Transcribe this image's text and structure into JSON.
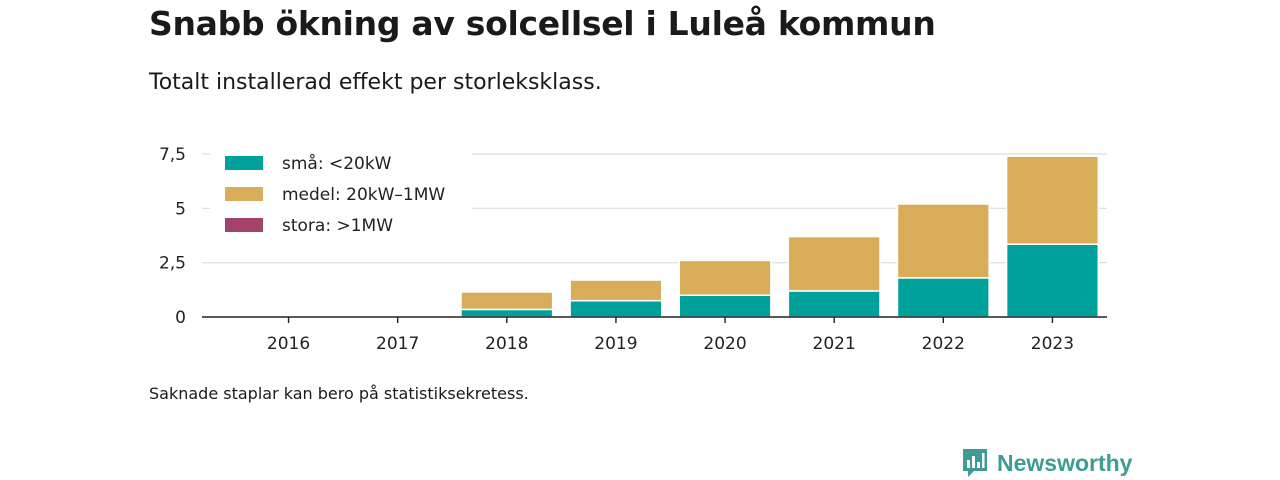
{
  "title": "Snabb ökning av solcellsel i Luleå kommun",
  "subtitle": "Totalt installerad effekt per storleksklass.",
  "note": "Saknade staplar kan bero på statistiksekretess.",
  "brand": {
    "name": "Newsworthy",
    "icon": "newsworthy-logo-icon",
    "color": "#3d9c93"
  },
  "chart_data": {
    "type": "bar",
    "stacked": true,
    "categories": [
      "2016",
      "2017",
      "2018",
      "2019",
      "2020",
      "2021",
      "2022",
      "2023"
    ],
    "series": [
      {
        "name": "små: <20kW",
        "color": "#00a19a",
        "values": [
          0,
          0,
          0.35,
          0.75,
          1.0,
          1.2,
          1.8,
          3.35
        ]
      },
      {
        "name": "medel: 20kW–1MW",
        "color": "#d9ac59",
        "values": [
          0,
          0,
          0.8,
          0.95,
          1.6,
          2.5,
          3.4,
          4.05
        ]
      },
      {
        "name": "stora: >1MW",
        "color": "#a3436a",
        "values": [
          0,
          0,
          0,
          0,
          0,
          0,
          0,
          0
        ]
      }
    ],
    "y_ticks": [
      {
        "value": 0,
        "label": "0"
      },
      {
        "value": 2.5,
        "label": "2,5"
      },
      {
        "value": 5,
        "label": "5"
      },
      {
        "value": 7.5,
        "label": "7,5"
      }
    ],
    "ylim": [
      0,
      7.5
    ],
    "grid": true,
    "legend_position": "top-left"
  }
}
